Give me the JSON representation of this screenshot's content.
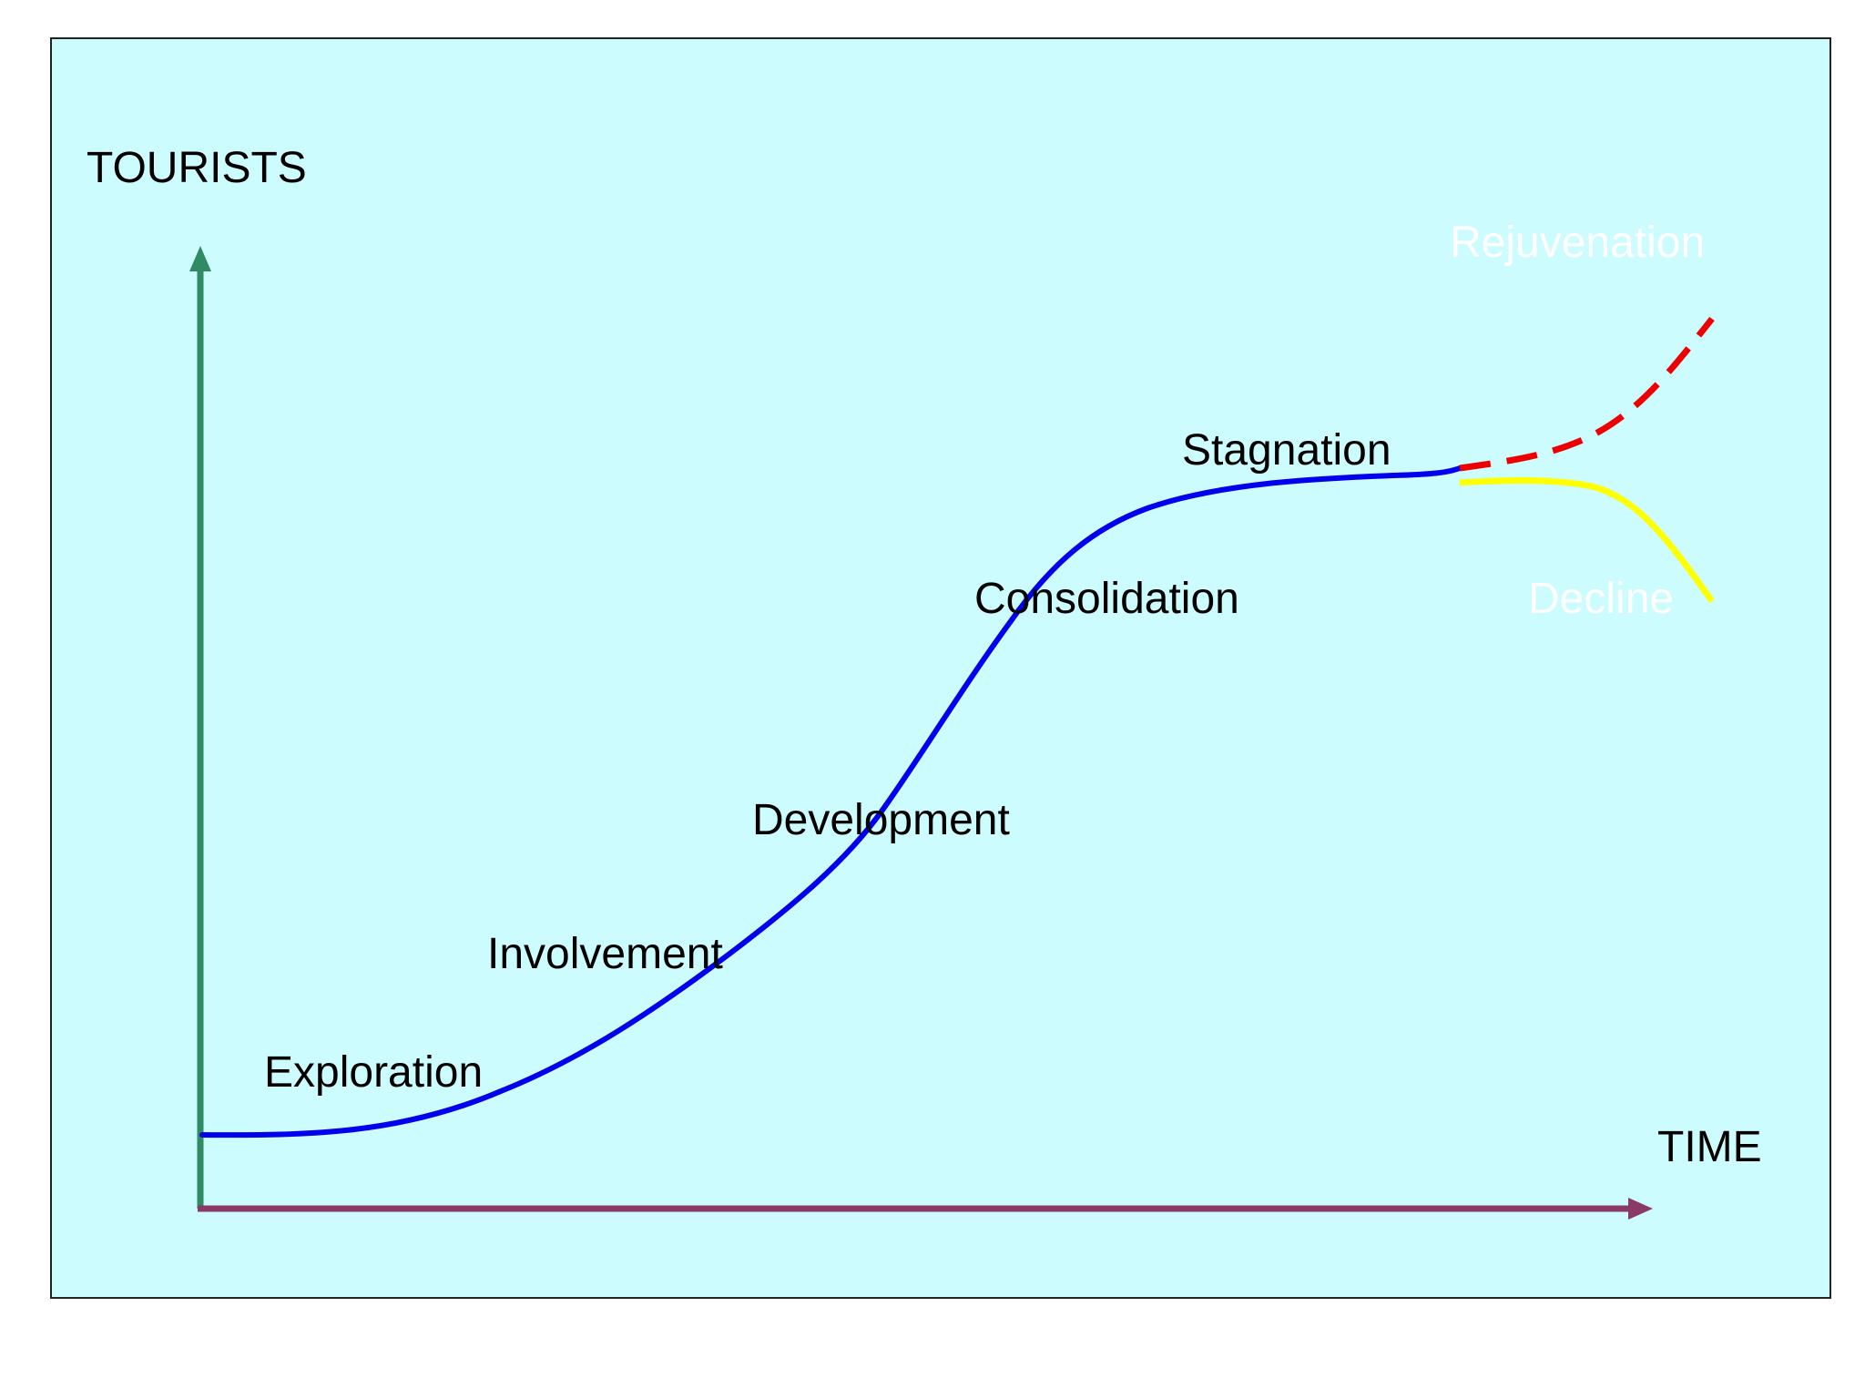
{
  "colors": {
    "panel_background": "#ccfcfd",
    "panel_border": "#222222",
    "y_axis": "#2e8b64",
    "x_axis": "#8b3a68",
    "main_curve": "#0000ee",
    "rejuvenation_curve": "#ee0000",
    "decline_curve": "#ffff00",
    "label_text": "#000000",
    "outcome_label_text": "#ffffff"
  },
  "axes": {
    "y_label": "TOURISTS",
    "x_label": "TIME"
  },
  "stages": [
    {
      "label": "Exploration"
    },
    {
      "label": "Involvement"
    },
    {
      "label": "Development"
    },
    {
      "label": "Consolidation"
    },
    {
      "label": "Stagnation"
    }
  ],
  "outcomes": {
    "rejuvenation": {
      "label": "Rejuvenation",
      "line_style": "dashed"
    },
    "decline": {
      "label": "Decline",
      "line_style": "solid"
    }
  }
}
